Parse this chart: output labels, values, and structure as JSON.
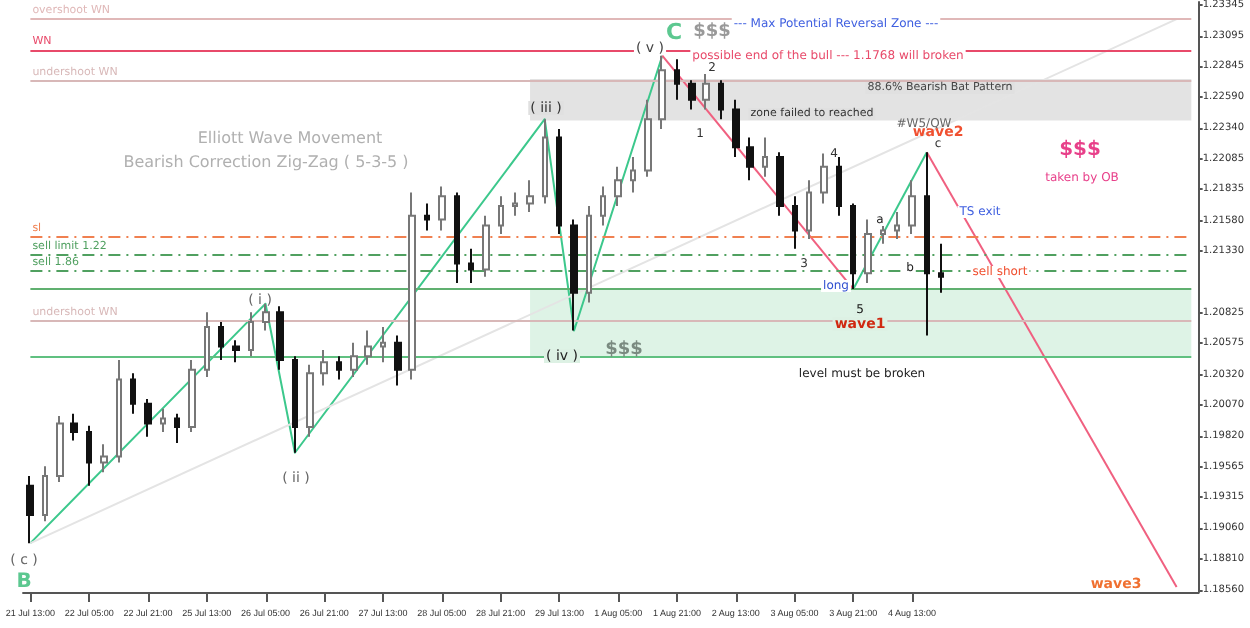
{
  "chart_data": {
    "type": "candlestick",
    "categories": [
      "21 Jul 13:00",
      null,
      null,
      null,
      "22 Jul 05:00",
      null,
      null,
      null,
      "22 Jul 21:00",
      null,
      null,
      null,
      "25 Jul 13:00",
      null,
      null,
      null,
      "26 Jul 05:00",
      null,
      null,
      null,
      "26 Jul 21:00",
      null,
      null,
      null,
      "27 Jul 13:00",
      null,
      null,
      null,
      "28 Jul 05:00",
      null,
      null,
      null,
      "28 Jul 21:00",
      null,
      null,
      null,
      "29 Jul 13:00",
      null,
      null,
      null,
      "1 Aug 05:00",
      null,
      null,
      null,
      "1 Aug 21:00",
      null,
      null,
      null,
      "2 Aug 13:00",
      null,
      null,
      null,
      "3 Aug 05:00",
      null,
      null,
      null,
      "3 Aug 21:00",
      null,
      null,
      null,
      "4 Aug 13:00",
      null,
      null,
      null,
      null,
      null,
      null,
      null,
      null,
      null,
      null,
      null,
      null,
      null,
      null,
      null,
      null,
      null,
      null,
      null
    ],
    "ohlc": [
      [
        1.1941,
        1.1949,
        1.1894,
        1.1917
      ],
      [
        1.1917,
        1.1957,
        1.1912,
        1.1949
      ],
      [
        1.1949,
        1.1998,
        1.1944,
        1.1992
      ],
      [
        1.1992,
        1.2,
        1.1978,
        1.1985
      ],
      [
        1.1985,
        1.199,
        1.1941,
        1.196
      ],
      [
        1.196,
        1.1975,
        1.1952,
        1.1965
      ],
      [
        1.1965,
        1.2044,
        1.196,
        1.2028
      ],
      [
        1.2028,
        1.2033,
        1.2,
        1.2008
      ],
      [
        1.2008,
        1.2012,
        1.1981,
        1.1992
      ],
      [
        1.1992,
        1.2004,
        1.1985,
        1.1996
      ],
      [
        1.1996,
        1.2,
        1.1976,
        1.1989
      ],
      [
        1.1989,
        1.2044,
        1.1985,
        1.2036
      ],
      [
        1.2036,
        1.2083,
        1.203,
        1.2071
      ],
      [
        1.2071,
        1.2075,
        1.2044,
        1.2055
      ],
      [
        1.2055,
        1.206,
        1.2042,
        1.2052
      ],
      [
        1.2052,
        1.2083,
        1.2047,
        1.2075
      ],
      [
        1.2075,
        1.209,
        1.2068,
        1.2083
      ],
      [
        1.2083,
        1.2088,
        1.2036,
        1.2044
      ],
      [
        1.2044,
        1.2047,
        1.1968,
        1.1989
      ],
      [
        1.1989,
        1.204,
        1.1981,
        1.2033
      ],
      [
        1.2033,
        1.2052,
        1.2023,
        1.2042
      ],
      [
        1.2042,
        1.2047,
        1.2028,
        1.2036
      ],
      [
        1.2036,
        1.2058,
        1.203,
        1.2047
      ],
      [
        1.2047,
        1.2068,
        1.204,
        1.2055
      ],
      [
        1.2055,
        1.2071,
        1.2042,
        1.2058
      ],
      [
        1.2058,
        1.2064,
        1.2023,
        1.2036
      ],
      [
        1.2036,
        1.2181,
        1.2028,
        1.2162
      ],
      [
        1.2162,
        1.2172,
        1.215,
        1.2159
      ],
      [
        1.2159,
        1.2186,
        1.215,
        1.2178
      ],
      [
        1.2178,
        1.2181,
        1.2107,
        1.2123
      ],
      [
        1.2123,
        1.2135,
        1.2107,
        1.2118
      ],
      [
        1.2118,
        1.2162,
        1.2112,
        1.2154
      ],
      [
        1.2154,
        1.2178,
        1.2147,
        1.217
      ],
      [
        1.217,
        1.2181,
        1.2162,
        1.2172
      ],
      [
        1.2172,
        1.2191,
        1.2165,
        1.2178
      ],
      [
        1.2178,
        1.2241,
        1.2172,
        1.2226
      ],
      [
        1.2226,
        1.2233,
        1.2147,
        1.2154
      ],
      [
        1.2154,
        1.2159,
        1.2068,
        1.2099
      ],
      [
        1.2099,
        1.217,
        1.2091,
        1.2162
      ],
      [
        1.2162,
        1.2186,
        1.2154,
        1.2178
      ],
      [
        1.2178,
        1.2202,
        1.217,
        1.2191
      ],
      [
        1.2191,
        1.221,
        1.2181,
        1.2199
      ],
      [
        1.2199,
        1.2257,
        1.2194,
        1.2241
      ],
      [
        1.2241,
        1.2293,
        1.2233,
        1.2281
      ],
      [
        1.2281,
        1.229,
        1.2257,
        1.227
      ],
      [
        1.227,
        1.2273,
        1.2249,
        1.2257
      ],
      [
        1.2257,
        1.2278,
        1.2249,
        1.227
      ],
      [
        1.227,
        1.2273,
        1.2241,
        1.2249
      ],
      [
        1.2249,
        1.2257,
        1.221,
        1.2218
      ],
      [
        1.2218,
        1.2226,
        1.2191,
        1.2202
      ],
      [
        1.2202,
        1.2226,
        1.2194,
        1.221
      ],
      [
        1.221,
        1.2214,
        1.2162,
        1.217
      ],
      [
        1.217,
        1.2178,
        1.2135,
        1.215
      ],
      [
        1.215,
        1.2191,
        1.2143,
        1.2181
      ],
      [
        1.2181,
        1.2213,
        1.2172,
        1.2202
      ],
      [
        1.2202,
        1.221,
        1.2162,
        1.217
      ],
      [
        1.217,
        1.2172,
        1.2102,
        1.2115
      ],
      [
        1.2115,
        1.2159,
        1.2107,
        1.2147
      ],
      [
        1.2147,
        1.2162,
        1.2139,
        1.215
      ],
      [
        1.215,
        1.2165,
        1.2143,
        1.2154
      ],
      [
        1.2154,
        1.2191,
        1.2147,
        1.2178
      ],
      [
        1.2178,
        1.2214,
        1.2064,
        1.2115
      ],
      [
        1.2115,
        1.2139,
        1.2099,
        1.2112
      ],
      null,
      null,
      null,
      null,
      null,
      null,
      null,
      null,
      null,
      null,
      null,
      null,
      null,
      null,
      null,
      null,
      null
    ],
    "series": [
      {
        "type": "line",
        "color": "#3cc88c",
        "values": [
          1.1894,
          null,
          null,
          null,
          null,
          null,
          null,
          null,
          null,
          null,
          null,
          null,
          null,
          null,
          null,
          null,
          1.209,
          null,
          1.1968,
          null,
          null,
          null,
          null,
          null,
          null,
          null,
          null,
          null,
          null,
          null,
          null,
          null,
          null,
          null,
          null,
          1.2241,
          null,
          1.2068,
          null,
          null,
          null,
          null,
          null,
          1.2293,
          null,
          null,
          null,
          null,
          null,
          null,
          null,
          null,
          null,
          null,
          null,
          null,
          null,
          null,
          null,
          null,
          null,
          null,
          null,
          null,
          null,
          null,
          null,
          null,
          null,
          null,
          null,
          null,
          null,
          null,
          null,
          null,
          null,
          null,
          null,
          null
        ]
      },
      {
        "type": "line",
        "color": "#3cc88c",
        "values": [
          null,
          null,
          null,
          null,
          null,
          null,
          null,
          null,
          null,
          null,
          null,
          null,
          null,
          null,
          null,
          null,
          null,
          null,
          null,
          null,
          null,
          null,
          null,
          null,
          null,
          null,
          null,
          null,
          null,
          null,
          null,
          null,
          null,
          null,
          null,
          null,
          null,
          null,
          null,
          null,
          null,
          null,
          null,
          null,
          null,
          null,
          null,
          null,
          null,
          null,
          null,
          null,
          null,
          null,
          null,
          null,
          1.2102,
          null,
          null,
          null,
          null,
          1.2214,
          null,
          null,
          null,
          null,
          null,
          null,
          null,
          null,
          null,
          null,
          null,
          null,
          null,
          null,
          null,
          null,
          null,
          null
        ]
      },
      {
        "type": "line",
        "color": "#f06080",
        "values": [
          null,
          null,
          null,
          null,
          null,
          null,
          null,
          null,
          null,
          null,
          null,
          null,
          null,
          null,
          null,
          null,
          null,
          null,
          null,
          null,
          null,
          null,
          null,
          null,
          null,
          null,
          null,
          null,
          null,
          null,
          null,
          null,
          null,
          null,
          null,
          null,
          null,
          null,
          null,
          null,
          null,
          null,
          null,
          1.2293,
          null,
          null,
          null,
          null,
          null,
          null,
          null,
          null,
          null,
          null,
          null,
          null,
          1.2102,
          null,
          null,
          null,
          null,
          null,
          null,
          null,
          null,
          null,
          null,
          null,
          null,
          null,
          null,
          null,
          null,
          null,
          null,
          null,
          null,
          null,
          null,
          null
        ]
      },
      {
        "type": "line",
        "color": "#f06080",
        "values": [
          null,
          null,
          null,
          null,
          null,
          null,
          null,
          null,
          null,
          null,
          null,
          null,
          null,
          null,
          null,
          null,
          null,
          null,
          null,
          null,
          null,
          null,
          null,
          null,
          null,
          null,
          null,
          null,
          null,
          null,
          null,
          null,
          null,
          null,
          null,
          null,
          null,
          null,
          null,
          null,
          null,
          null,
          null,
          null,
          null,
          null,
          null,
          null,
          null,
          null,
          null,
          null,
          null,
          null,
          null,
          null,
          null,
          null,
          null,
          null,
          null,
          1.2214,
          null,
          null,
          null,
          null,
          null,
          null,
          null,
          null,
          null,
          null,
          null,
          null,
          null,
          null,
          null,
          null,
          1.1858,
          null
        ]
      },
      {
        "type": "line",
        "color": "#e4e4e4",
        "values": [
          1.1894,
          null,
          null,
          null,
          null,
          null,
          null,
          null,
          null,
          null,
          null,
          null,
          null,
          null,
          null,
          null,
          null,
          null,
          null,
          null,
          null,
          null,
          null,
          null,
          null,
          null,
          null,
          null,
          null,
          null,
          null,
          null,
          null,
          null,
          null,
          null,
          null,
          null,
          null,
          null,
          null,
          null,
          null,
          null,
          null,
          null,
          null,
          null,
          null,
          null,
          null,
          null,
          null,
          null,
          null,
          null,
          null,
          null,
          null,
          null,
          null,
          null,
          null,
          null,
          null,
          null,
          null,
          null,
          null,
          null,
          null,
          null,
          null,
          null,
          null,
          null,
          null,
          null,
          1.2323,
          null
        ]
      }
    ],
    "ylim": [
      1.1854,
      1.2337
    ],
    "yticks": [
      {
        "value": 1.1856,
        "label": "1.18560"
      },
      {
        "value": 1.1881,
        "label": "1.18810"
      },
      {
        "value": 1.1906,
        "label": "1.19060"
      },
      1.19315,
      1.19565,
      {
        "value": 1.1982,
        "label": "1.19820"
      },
      {
        "value": 1.2007,
        "label": "1.20070"
      },
      {
        "value": 1.2032,
        "label": "1.20320"
      },
      1.20575,
      1.20825,
      {
        "value": 1.2133,
        "label": "1.21330"
      },
      {
        "value": 1.2158,
        "label": "1.21580"
      },
      1.21835,
      1.22085,
      {
        "value": 1.2234,
        "label": "1.22340"
      },
      {
        "value": 1.2259,
        "label": "1.22590"
      },
      1.22845,
      1.23095,
      1.23345
    ],
    "ref_lines": [
      {
        "axis": "y",
        "value": 1.2323,
        "label": "overshoot WN",
        "color": "#e0b8b8",
        "line_style": "solid"
      },
      {
        "axis": "y",
        "value": 1.2298,
        "label": "WN",
        "color": "#e84a6a",
        "line_style": "solid"
      },
      {
        "axis": "y",
        "value": 1.2272,
        "label": "undershoot WN",
        "color": "#d8b8b8",
        "line_style": "solid"
      },
      {
        "axis": "y",
        "value": 1.2145,
        "label": "sl",
        "color": "#f08050",
        "line_style": "dashed"
      },
      {
        "axis": "y",
        "value": 1.213,
        "label": "sell limit 1.22",
        "color": "#50a060",
        "line_style": "dashed"
      },
      {
        "axis": "y",
        "value": 1.2117,
        "label": "sell 1.86",
        "color": "#50a060",
        "line_style": "dashed"
      },
      {
        "axis": "y",
        "value": 1.2102,
        "color": "#60b070",
        "line_style": "solid"
      },
      {
        "axis": "y",
        "value": 1.2076,
        "label": "undershoot WN",
        "color": "#d8b8b8",
        "line_style": "solid"
      },
      {
        "axis": "y",
        "value": 1.2047,
        "color": "#60c080",
        "line_style": "solid"
      }
    ],
    "bands": [
      {
        "axis": "y",
        "from": 1.224,
        "to": 1.2274,
        "color": "#dcdcdc"
      },
      {
        "axis": "y",
        "from": 1.2047,
        "to": 1.2102,
        "color": "#d6f0e0"
      }
    ],
    "annotations": [
      "Elliott Wave Movement",
      "Bearish Correction Zig-Zag ( 5-3-5 )",
      "( i )",
      "( ii )",
      "( iii )",
      "( iv )",
      "( v )",
      "( c )",
      "B",
      "C",
      "$$$",
      "$$$",
      "--- Max Potential Reversal Zone ---",
      "possible end of the bull --- 1.1768 will broken",
      "zone failed to reached",
      "88.6% Bearish Bat Pattern",
      "#W5/QW",
      "1",
      "2",
      "3",
      "4",
      "5",
      "a",
      "b",
      "c",
      "wave1",
      "wave2",
      "wave3",
      "long",
      "TS exit",
      "sell short",
      "$$$",
      "taken by OB",
      "level must be broken"
    ],
    "grid": false
  }
}
